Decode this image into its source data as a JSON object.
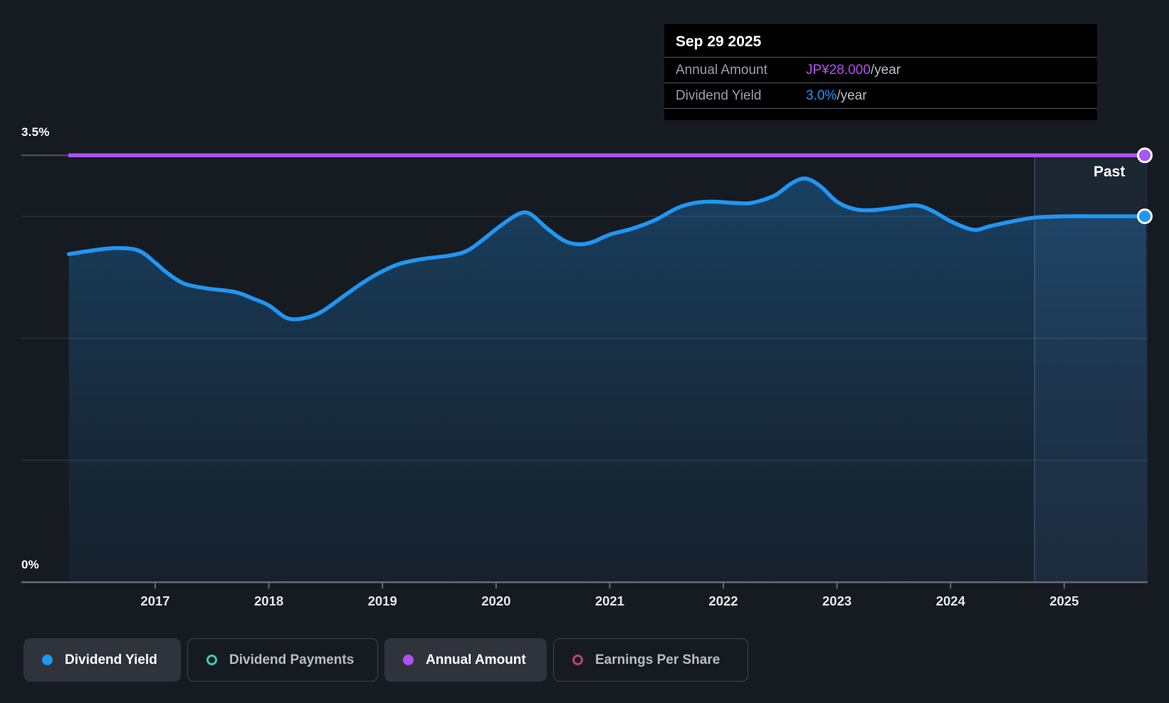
{
  "colors": {
    "background": "#161b22",
    "dividend_yield": "#2196f3",
    "annual_amount_value": "#b44ff2",
    "annual_amount_line": "#a855f7",
    "dividend_payments": "#3fc9b1",
    "earnings_per_share": "#b64477",
    "gridline": "#272d36",
    "axis": "#646a72",
    "tick_label": "#e4e7ea"
  },
  "tooltip": {
    "date": "Sep 29 2025",
    "rows": [
      {
        "label": "Annual Amount",
        "value": "JP¥28.000",
        "unit": "/year",
        "color_key": "annual_amount_value"
      },
      {
        "label": "Dividend Yield",
        "value": "3.0%",
        "unit": "/year",
        "color_key": "dividend_yield"
      }
    ]
  },
  "y_axis_labels": {
    "top": "3.5%",
    "bottom": "0%"
  },
  "past_label": "Past",
  "legend": {
    "items": [
      {
        "label": "Dividend Yield",
        "marker": "filled",
        "color_key": "dividend_yield",
        "selected": true
      },
      {
        "label": "Dividend Payments",
        "marker": "hollow",
        "color_key": "dividend_payments",
        "selected": false
      },
      {
        "label": "Annual Amount",
        "marker": "filled",
        "color_key": "annual_amount_value",
        "selected": true
      },
      {
        "label": "Earnings Per Share",
        "marker": "hollow",
        "color_key": "earnings_per_share",
        "selected": false
      }
    ]
  },
  "chart_data": {
    "type": "area",
    "x_range": [
      2016.24,
      2025.72
    ],
    "x_ticks": [
      "2017",
      "2018",
      "2019",
      "2020",
      "2021",
      "2022",
      "2023",
      "2024",
      "2025"
    ],
    "x_tick_values": [
      2017,
      2018,
      2019,
      2020,
      2021,
      2022,
      2023,
      2024,
      2025
    ],
    "y_axis": {
      "min_pct": 0.0,
      "max_pct": 3.5,
      "gridlines_pct": [
        1.0,
        2.0,
        3.0
      ],
      "top_line_pct": 3.5
    },
    "highlight_band_start_x": 2024.74,
    "annotation_at_cursor": {
      "date": "Sep 29 2025",
      "annual_amount": "JP¥28.000/year",
      "dividend_yield_pct": 3.0
    },
    "series": [
      {
        "name": "Dividend Yield",
        "unit": "%",
        "color_key": "dividend_yield",
        "points": [
          [
            2016.24,
            2.69
          ],
          [
            2016.45,
            2.72
          ],
          [
            2016.65,
            2.74
          ],
          [
            2016.85,
            2.72
          ],
          [
            2017.0,
            2.62
          ],
          [
            2017.1,
            2.54
          ],
          [
            2017.25,
            2.45
          ],
          [
            2017.45,
            2.41
          ],
          [
            2017.7,
            2.38
          ],
          [
            2017.85,
            2.33
          ],
          [
            2018.0,
            2.27
          ],
          [
            2018.15,
            2.17
          ],
          [
            2018.28,
            2.16
          ],
          [
            2018.45,
            2.21
          ],
          [
            2018.65,
            2.34
          ],
          [
            2018.85,
            2.47
          ],
          [
            2019.0,
            2.55
          ],
          [
            2019.15,
            2.61
          ],
          [
            2019.35,
            2.65
          ],
          [
            2019.6,
            2.68
          ],
          [
            2019.75,
            2.72
          ],
          [
            2019.9,
            2.82
          ],
          [
            2020.05,
            2.93
          ],
          [
            2020.2,
            3.02
          ],
          [
            2020.3,
            3.02
          ],
          [
            2020.45,
            2.9
          ],
          [
            2020.6,
            2.8
          ],
          [
            2020.73,
            2.77
          ],
          [
            2020.85,
            2.79
          ],
          [
            2021.0,
            2.85
          ],
          [
            2021.2,
            2.9
          ],
          [
            2021.4,
            2.97
          ],
          [
            2021.6,
            3.07
          ],
          [
            2021.75,
            3.11
          ],
          [
            2021.9,
            3.12
          ],
          [
            2022.1,
            3.11
          ],
          [
            2022.25,
            3.11
          ],
          [
            2022.45,
            3.17
          ],
          [
            2022.6,
            3.27
          ],
          [
            2022.72,
            3.31
          ],
          [
            2022.85,
            3.25
          ],
          [
            2023.0,
            3.12
          ],
          [
            2023.15,
            3.06
          ],
          [
            2023.3,
            3.05
          ],
          [
            2023.5,
            3.07
          ],
          [
            2023.7,
            3.09
          ],
          [
            2023.85,
            3.04
          ],
          [
            2024.0,
            2.96
          ],
          [
            2024.2,
            2.89
          ],
          [
            2024.35,
            2.92
          ],
          [
            2024.55,
            2.96
          ],
          [
            2024.75,
            2.99
          ],
          [
            2025.0,
            3.0
          ],
          [
            2025.3,
            3.0
          ],
          [
            2025.72,
            3.0
          ]
        ]
      },
      {
        "name": "Annual Amount",
        "unit": "JP¥/year",
        "color_key": "annual_amount_line",
        "display_level_pct": 3.5,
        "points": [
          [
            2016.24,
            28.0
          ],
          [
            2025.72,
            28.0
          ]
        ]
      }
    ]
  }
}
